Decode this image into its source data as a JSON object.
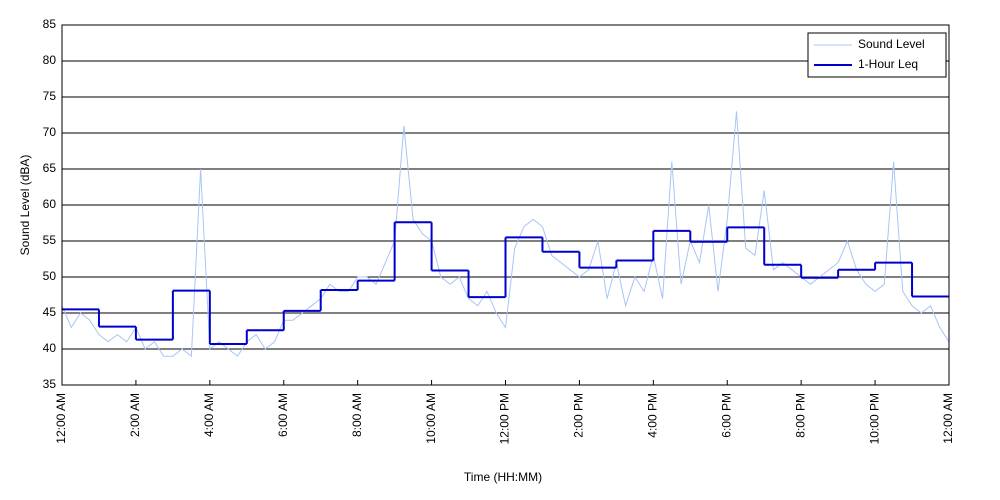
{
  "chart_data": {
    "type": "line",
    "xlabel": "Time (HH:MM)",
    "ylabel": "Sound Level (dBA)",
    "xlim": [
      0,
      24
    ],
    "xticks": [
      {
        "value": 0,
        "label": "12:00 AM"
      },
      {
        "value": 2,
        "label": "2:00 AM"
      },
      {
        "value": 4,
        "label": "4:00 AM"
      },
      {
        "value": 6,
        "label": "6:00 AM"
      },
      {
        "value": 8,
        "label": "8:00 AM"
      },
      {
        "value": 10,
        "label": "10:00 AM"
      },
      {
        "value": 12,
        "label": "12:00 PM"
      },
      {
        "value": 14,
        "label": "2:00 PM"
      },
      {
        "value": 16,
        "label": "4:00 PM"
      },
      {
        "value": 18,
        "label": "6:00 PM"
      },
      {
        "value": 20,
        "label": "8:00 PM"
      },
      {
        "value": 22,
        "label": "10:00 PM"
      },
      {
        "value": 24,
        "label": "12:00 AM"
      }
    ],
    "ylim": [
      35,
      85
    ],
    "yticks": [
      35,
      40,
      45,
      50,
      55,
      60,
      65,
      70,
      75,
      80,
      85
    ],
    "grid": true,
    "legend": "upper right",
    "series": [
      {
        "name": "Sound Level",
        "color": "#a9c4f5",
        "step": false,
        "x": [
          0,
          0.25,
          0.5,
          0.75,
          1,
          1.25,
          1.5,
          1.75,
          2,
          2.25,
          2.5,
          2.75,
          3,
          3.25,
          3.5,
          3.75,
          4,
          4.25,
          4.5,
          4.75,
          5,
          5.25,
          5.5,
          5.75,
          6,
          6.25,
          6.5,
          6.75,
          7,
          7.25,
          7.5,
          7.75,
          8,
          8.25,
          8.5,
          8.75,
          9,
          9.25,
          9.5,
          9.75,
          10,
          10.25,
          10.5,
          10.75,
          11,
          11.25,
          11.5,
          11.75,
          12,
          12.25,
          12.5,
          12.75,
          13,
          13.25,
          13.5,
          13.75,
          14,
          14.25,
          14.5,
          14.75,
          15,
          15.25,
          15.5,
          15.75,
          16,
          16.25,
          16.5,
          16.75,
          17,
          17.25,
          17.5,
          17.75,
          18,
          18.25,
          18.5,
          18.75,
          19,
          19.25,
          19.5,
          19.75,
          20,
          20.25,
          20.5,
          20.75,
          21,
          21.25,
          21.5,
          21.75,
          22,
          22.25,
          22.5,
          22.75,
          23,
          23.25,
          23.5,
          23.75,
          24
        ],
        "values": [
          46,
          43,
          45,
          44,
          42,
          41,
          42,
          41,
          43,
          40,
          41,
          39,
          39,
          40,
          39,
          65,
          40,
          41,
          40,
          39,
          41,
          42,
          40,
          41,
          44,
          44,
          45,
          46,
          47,
          49,
          48,
          48,
          50,
          50,
          49,
          52,
          55,
          71,
          58,
          56,
          55,
          50,
          49,
          50,
          47,
          46,
          48,
          45,
          43,
          54,
          57,
          58,
          57,
          53,
          52,
          51,
          50,
          51,
          55,
          47,
          52,
          46,
          50,
          48,
          53,
          47,
          66,
          49,
          55,
          52,
          60,
          48,
          58,
          73,
          54,
          53,
          62,
          51,
          52,
          51,
          50,
          49,
          50,
          51,
          52,
          55,
          51,
          49,
          48,
          49,
          66,
          48,
          46,
          45,
          46,
          43,
          41
        ]
      },
      {
        "name": "1-Hour Leq",
        "color": "#0000cc",
        "step": true,
        "x": [
          0,
          1,
          2,
          3,
          4,
          5,
          6,
          7,
          8,
          9,
          10,
          11,
          12,
          13,
          14,
          15,
          16,
          17,
          18,
          19,
          20,
          21,
          22,
          23
        ],
        "values": [
          45.5,
          43.1,
          41.3,
          48.1,
          40.7,
          42.6,
          45.3,
          48.2,
          49.5,
          57.6,
          50.9,
          47.2,
          55.5,
          53.5,
          51.3,
          52.3,
          56.4,
          54.9,
          56.9,
          51.7,
          49.9,
          51.0,
          52.0,
          47.3
        ]
      }
    ]
  }
}
